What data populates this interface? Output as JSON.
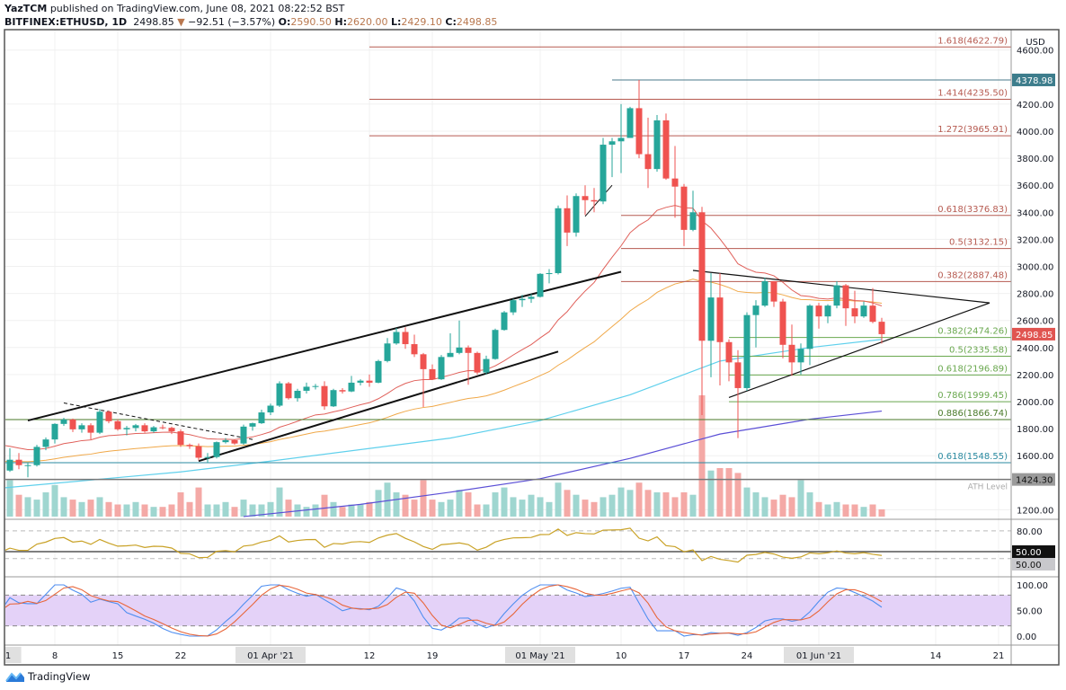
{
  "header": {
    "author": "YazTCM",
    "published": "published on TradingView.com, June 08, 2021 08:22:52 BST",
    "symbol": "BITFINEX:ETHUSD, 1D",
    "last": "2498.85",
    "change": "−92.51 (−3.57%)",
    "o_label": "O:",
    "o": "2590.50",
    "h_label": "H:",
    "h": "2620.00",
    "l_label": "L:",
    "l": "2429.10",
    "c_label": "C:",
    "c": "2498.85"
  },
  "footer": {
    "brand": "TradingView"
  },
  "colors": {
    "up": "#26a69a",
    "down": "#ef5350",
    "ema20": "#e0605a",
    "ema50": "#f0a848",
    "ma100": "#5fd0ec",
    "ma200": "#5b4fd6",
    "rsi": "#c9a227",
    "stoch_k": "#4f8ef0",
    "stoch_d": "#e8663a",
    "stoch_band": "#e4d2f8"
  },
  "chart_data": {
    "type": "candlestick",
    "title": "BITFINEX:ETHUSD, 1D",
    "currency": "USD",
    "ylim": [
      1150,
      4700
    ],
    "yticks": [
      "4600.00",
      "4200.00",
      "4000.00",
      "3800.00",
      "3600.00",
      "3400.00",
      "3200.00",
      "3000.00",
      "2800.00",
      "2600.00",
      "2400.00",
      "2200.00",
      "2000.00",
      "1800.00",
      "1600.00",
      "1200.00"
    ],
    "xticks": [
      {
        "day": -61,
        "label": "1",
        "major": true
      },
      {
        "day": -54,
        "label": "8"
      },
      {
        "day": -47,
        "label": "15"
      },
      {
        "day": -40,
        "label": "22"
      },
      {
        "day": -30,
        "label": "01 Apr '21",
        "major": true
      },
      {
        "day": -19,
        "label": "12"
      },
      {
        "day": -12,
        "label": "19"
      },
      {
        "day": 0,
        "label": "01 May '21",
        "major": true
      },
      {
        "day": 9,
        "label": "10"
      },
      {
        "day": 16,
        "label": "17"
      },
      {
        "day": 23,
        "label": "24"
      },
      {
        "day": 31,
        "label": "01 Jun '21",
        "major": true
      },
      {
        "day": 44,
        "label": "14"
      },
      {
        "day": 51,
        "label": "21"
      }
    ],
    "first_candle_day": -60,
    "candles": [
      [
        1565,
        1600,
        1460,
        1490
      ],
      [
        1490,
        1655,
        1480,
        1570
      ],
      [
        1570,
        1620,
        1500,
        1530
      ],
      [
        1530,
        1550,
        1440,
        1530
      ],
      [
        1530,
        1680,
        1520,
        1665
      ],
      [
        1665,
        1735,
        1640,
        1720
      ],
      [
        1720,
        1840,
        1690,
        1835
      ],
      [
        1835,
        1880,
        1820,
        1868
      ],
      [
        1868,
        1875,
        1775,
        1795
      ],
      [
        1795,
        1840,
        1770,
        1825
      ],
      [
        1825,
        1840,
        1720,
        1770
      ],
      [
        1770,
        1945,
        1760,
        1925
      ],
      [
        1925,
        1935,
        1840,
        1855
      ],
      [
        1855,
        1870,
        1785,
        1795
      ],
      [
        1795,
        1820,
        1750,
        1805
      ],
      [
        1805,
        1835,
        1780,
        1825
      ],
      [
        1825,
        1840,
        1770,
        1780
      ],
      [
        1780,
        1820,
        1770,
        1810
      ],
      [
        1810,
        1830,
        1795,
        1806
      ],
      [
        1806,
        1815,
        1760,
        1780
      ],
      [
        1780,
        1795,
        1665,
        1680
      ],
      [
        1680,
        1690,
        1650,
        1670
      ],
      [
        1670,
        1690,
        1565,
        1585
      ],
      [
        1585,
        1620,
        1550,
        1590
      ],
      [
        1590,
        1705,
        1580,
        1700
      ],
      [
        1700,
        1730,
        1690,
        1715
      ],
      [
        1715,
        1720,
        1680,
        1690
      ],
      [
        1690,
        1830,
        1680,
        1815
      ],
      [
        1815,
        1845,
        1785,
        1840
      ],
      [
        1840,
        1940,
        1835,
        1920
      ],
      [
        1920,
        1985,
        1900,
        1970
      ],
      [
        1970,
        2150,
        1960,
        2135
      ],
      [
        2135,
        2145,
        2015,
        2025
      ],
      [
        2025,
        2095,
        2000,
        2080
      ],
      [
        2080,
        2140,
        2060,
        2110
      ],
      [
        2110,
        2130,
        2090,
        2115
      ],
      [
        2115,
        2150,
        1940,
        1965
      ],
      [
        1965,
        2095,
        1960,
        2085
      ],
      [
        2085,
        2100,
        2060,
        2075
      ],
      [
        2075,
        2190,
        2070,
        2140
      ],
      [
        2140,
        2165,
        2120,
        2155
      ],
      [
        2155,
        2200,
        2110,
        2140
      ],
      [
        2140,
        2310,
        2135,
        2300
      ],
      [
        2300,
        2470,
        2290,
        2430
      ],
      [
        2430,
        2545,
        2420,
        2515
      ],
      [
        2515,
        2550,
        2390,
        2425
      ],
      [
        2425,
        2495,
        2330,
        2350
      ],
      [
        2350,
        2360,
        1960,
        2240
      ],
      [
        2240,
        2275,
        2160,
        2165
      ],
      [
        2165,
        2345,
        2160,
        2330
      ],
      [
        2330,
        2505,
        2330,
        2360
      ],
      [
        2360,
        2600,
        2350,
        2400
      ],
      [
        2400,
        2415,
        2125,
        2360
      ],
      [
        2360,
        2370,
        2200,
        2215
      ],
      [
        2215,
        2340,
        2200,
        2315
      ],
      [
        2315,
        2540,
        2310,
        2530
      ],
      [
        2530,
        2670,
        2525,
        2660
      ],
      [
        2660,
        2760,
        2640,
        2750
      ],
      [
        2750,
        2790,
        2700,
        2760
      ],
      [
        2760,
        2795,
        2730,
        2775
      ],
      [
        2775,
        2950,
        2770,
        2945
      ],
      [
        2945,
        2980,
        2875,
        2950
      ],
      [
        2950,
        3450,
        2940,
        3430
      ],
      [
        3430,
        3525,
        3150,
        3250
      ],
      [
        3250,
        3540,
        3220,
        3520
      ],
      [
        3520,
        3600,
        3380,
        3490
      ],
      [
        3490,
        3580,
        3400,
        3480
      ],
      [
        3480,
        3950,
        3460,
        3900
      ],
      [
        3900,
        3950,
        3660,
        3925
      ],
      [
        3925,
        4200,
        3690,
        3950
      ],
      [
        3950,
        4180,
        3950,
        4170
      ],
      [
        4170,
        4379,
        3800,
        3830
      ],
      [
        3830,
        4100,
        3580,
        3720
      ],
      [
        3720,
        4120,
        3700,
        4080
      ],
      [
        4080,
        4130,
        3640,
        3650
      ],
      [
        3650,
        3890,
        3360,
        3590
      ],
      [
        3590,
        3610,
        3150,
        3270
      ],
      [
        3270,
        3560,
        3260,
        3400
      ],
      [
        3400,
        3440,
        1900,
        2450
      ],
      [
        2450,
        2950,
        2180,
        2770
      ],
      [
        2770,
        2950,
        2120,
        2440
      ],
      [
        2440,
        2460,
        2150,
        2290
      ],
      [
        2290,
        2380,
        1730,
        2100
      ],
      [
        2100,
        2660,
        2080,
        2640
      ],
      [
        2640,
        2750,
        2400,
        2710
      ],
      [
        2710,
        2915,
        2700,
        2890
      ],
      [
        2890,
        2890,
        2700,
        2740
      ],
      [
        2740,
        2760,
        2320,
        2420
      ],
      [
        2420,
        2570,
        2190,
        2290
      ],
      [
        2290,
        2430,
        2200,
        2390
      ],
      [
        2390,
        2720,
        2270,
        2710
      ],
      [
        2710,
        2730,
        2540,
        2630
      ],
      [
        2630,
        2720,
        2580,
        2710
      ],
      [
        2710,
        2890,
        2690,
        2860
      ],
      [
        2860,
        2870,
        2560,
        2690
      ],
      [
        2690,
        2820,
        2580,
        2630
      ],
      [
        2630,
        2740,
        2620,
        2710
      ],
      [
        2710,
        2840,
        2580,
        2590
      ],
      [
        2590.5,
        2620,
        2429.1,
        2498.85
      ]
    ],
    "volume": [
      24,
      30,
      18,
      16,
      14,
      20,
      26,
      16,
      14,
      12,
      14,
      16,
      12,
      10,
      10,
      12,
      10,
      8,
      8,
      10,
      20,
      12,
      24,
      10,
      10,
      12,
      8,
      14,
      10,
      10,
      12,
      24,
      14,
      10,
      8,
      10,
      18,
      12,
      8,
      10,
      10,
      12,
      22,
      28,
      20,
      18,
      14,
      30,
      14,
      12,
      14,
      22,
      20,
      10,
      10,
      20,
      24,
      16,
      14,
      18,
      16,
      12,
      28,
      22,
      18,
      14,
      12,
      16,
      18,
      24,
      22,
      28,
      22,
      20,
      20,
      16,
      20,
      18,
      100,
      38,
      40,
      40,
      36,
      24,
      20,
      16,
      14,
      18,
      16,
      30,
      20,
      12,
      10,
      12,
      10,
      10,
      8,
      10,
      6
    ],
    "ema_seed": {
      "ema20": 1700,
      "ema50": 1560
    },
    "ma100_points": [
      [
        -60,
        1360
      ],
      [
        -40,
        1480
      ],
      [
        -30,
        1560
      ],
      [
        -10,
        1730
      ],
      [
        0,
        1860
      ],
      [
        10,
        2050
      ],
      [
        20,
        2300
      ],
      [
        30,
        2400
      ],
      [
        38,
        2460
      ]
    ],
    "ma200_points": [
      [
        -33,
        1150
      ],
      [
        -20,
        1240
      ],
      [
        -10,
        1330
      ],
      [
        0,
        1430
      ],
      [
        10,
        1580
      ],
      [
        20,
        1760
      ],
      [
        30,
        1870
      ],
      [
        38,
        1930
      ]
    ],
    "fib_levels": [
      {
        "label": "1.618(4622.79)",
        "price": 4622.79,
        "from_day": -19,
        "color": "#b65a50"
      },
      {
        "label": "1.414(4235.50)",
        "price": 4235.5,
        "from_day": -19,
        "color": "#b65a50"
      },
      {
        "label": "1.272(3965.91)",
        "price": 3965.91,
        "from_day": -19,
        "color": "#b65a50"
      },
      {
        "label": "0.618(3376.83)",
        "price": 3376.83,
        "from_day": 9,
        "color": "#b65a50"
      },
      {
        "label": "0.5(3132.15)",
        "price": 3132.15,
        "from_day": 9,
        "color": "#b65a50"
      },
      {
        "label": "0.382(2887.48)",
        "price": 2887.48,
        "from_day": 9,
        "color": "#b65a50"
      },
      {
        "label": "0.382(2474.26)",
        "price": 2474.26,
        "from_day": 21,
        "color": "#6aa84f"
      },
      {
        "label": "0.5(2335.58)",
        "price": 2335.58,
        "from_day": 21,
        "color": "#6aa84f"
      },
      {
        "label": "0.618(2196.89)",
        "price": 2196.89,
        "from_day": 21,
        "color": "#6aa84f"
      },
      {
        "label": "0.786(1999.45)",
        "price": 1999.45,
        "from_day": 21,
        "color": "#6aa84f"
      },
      {
        "label": "0.886(1866.74)",
        "price": 1866.74,
        "from_day": -61,
        "color": "#4a7a2a"
      },
      {
        "label": "0.618(1548.55)",
        "price": 1548.55,
        "from_day": -61,
        "color": "#2a8aa0"
      }
    ],
    "ath": {
      "label": "ATH Level",
      "price": 1424.3,
      "tag": "1424.30"
    },
    "high_line": {
      "price": 4378.98,
      "tag": "4378.98",
      "from_day": 8
    },
    "last_tag": "2498.85",
    "trendlines": [
      {
        "name": "channel-upper",
        "p1": [
          -57,
          1860
        ],
        "p2": [
          9,
          2960
        ],
        "dashed": false,
        "width": 2
      },
      {
        "name": "channel-lower",
        "p1": [
          -38,
          1560
        ],
        "p2": [
          2,
          2370
        ],
        "dashed": false,
        "width": 2
      },
      {
        "name": "descending-dashed",
        "p1": [
          -53,
          1990
        ],
        "p2": [
          -32,
          1720
        ],
        "dashed": true,
        "width": 1
      },
      {
        "name": "triangle-upper",
        "p1": [
          17,
          2970
        ],
        "p2": [
          50,
          2730
        ],
        "dashed": false,
        "width": 1.2
      },
      {
        "name": "triangle-lower",
        "p1": [
          21,
          2030
        ],
        "p2": [
          50,
          2730
        ],
        "dashed": false,
        "width": 1.2
      },
      {
        "name": "flag-lower",
        "p1": [
          5,
          3370
        ],
        "p2": [
          8,
          3600
        ],
        "dashed": false,
        "width": 1
      }
    ],
    "rsi": {
      "ticks": [
        "80.00"
      ],
      "tag_value": "50.00",
      "tag_value2": "50.00",
      "levels": [
        80,
        50,
        40
      ]
    },
    "stoch": {
      "ticks": [
        "100.00",
        "50.00",
        "0.00"
      ],
      "band": [
        20,
        80
      ]
    }
  }
}
